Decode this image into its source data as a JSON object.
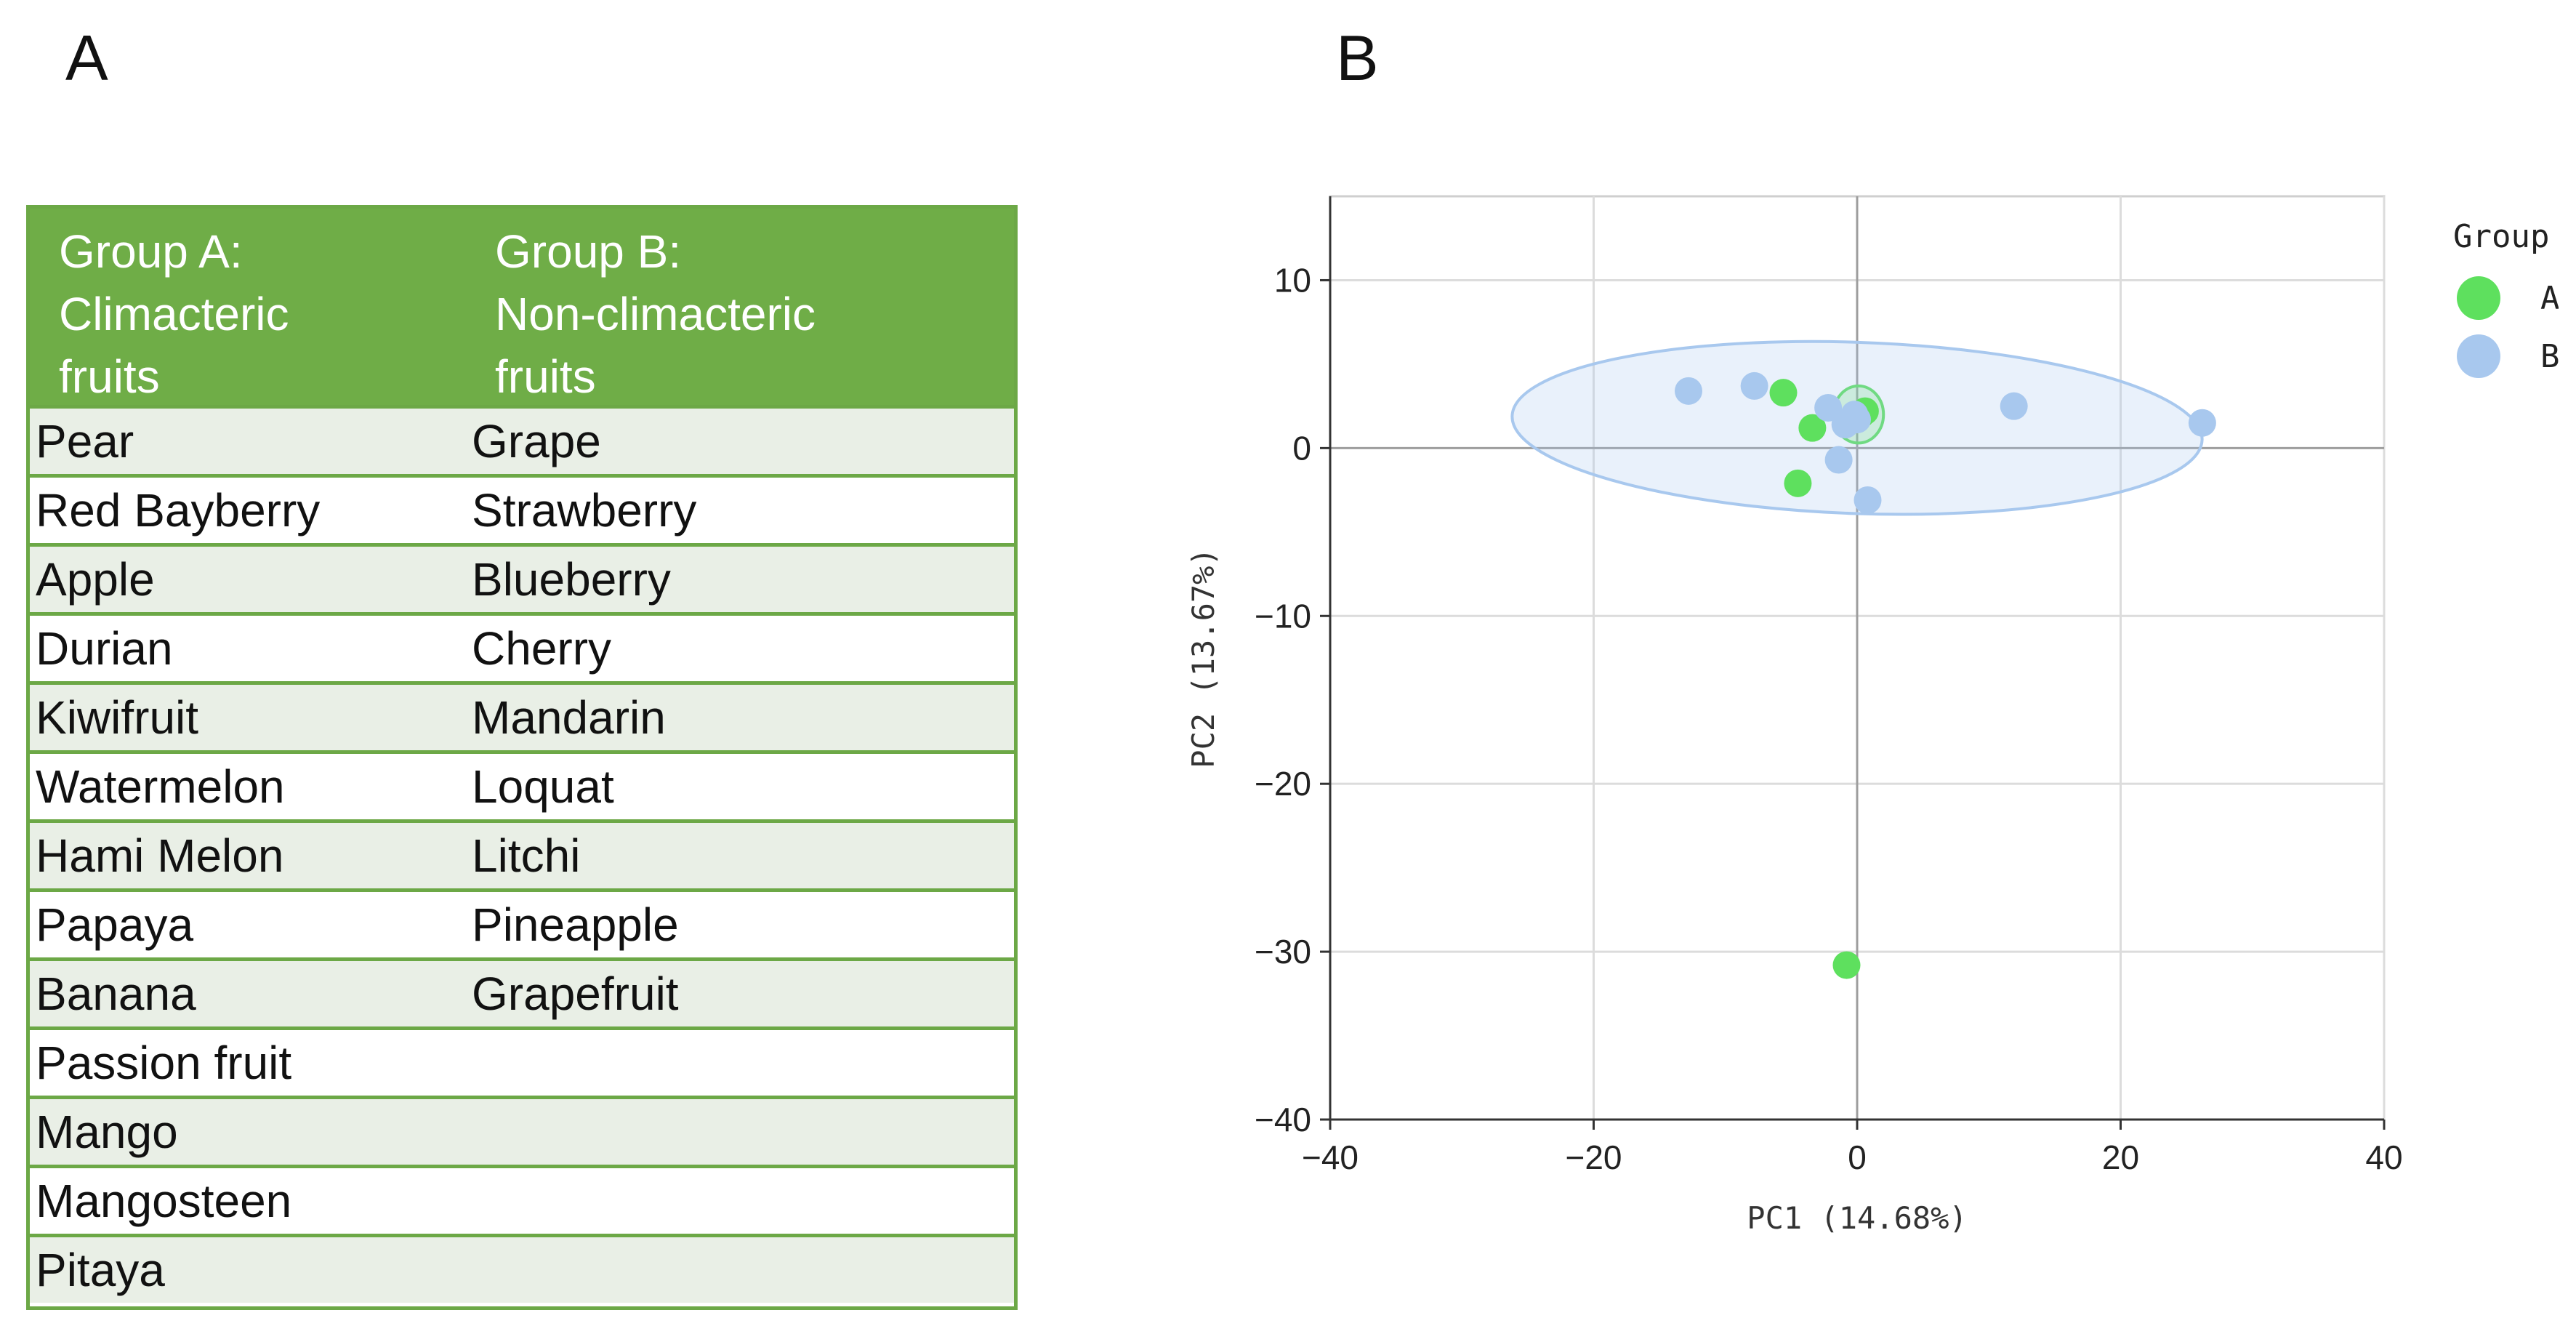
{
  "panel_a": {
    "label": "A",
    "table": {
      "headers": [
        "Group A:\nClimacteric\nfruits",
        "Group B:\nNon-climacteric\nfruits"
      ],
      "rows": [
        [
          "Pear",
          "Grape"
        ],
        [
          "Red Bayberry",
          "Strawberry"
        ],
        [
          "Apple",
          "Blueberry"
        ],
        [
          "Durian",
          "Cherry"
        ],
        [
          "Kiwifruit",
          "Mandarin"
        ],
        [
          "Watermelon",
          "Loquat"
        ],
        [
          "Hami Melon",
          "Litchi"
        ],
        [
          "Papaya",
          "Pineapple"
        ],
        [
          "Banana",
          "Grapefruit"
        ],
        [
          "Passion fruit",
          ""
        ],
        [
          "Mango",
          ""
        ],
        [
          "Mangosteen",
          ""
        ],
        [
          "Pitaya",
          ""
        ]
      ]
    },
    "colors": {
      "header": "#6fad47",
      "border": "#6ca846",
      "stripe": "#e9efe6"
    }
  },
  "panel_b": {
    "label": "B"
  },
  "chart_data": {
    "type": "scatter",
    "title": "",
    "xlabel": "PC1 (14.68%)",
    "ylabel": "PC2 (13.67%)",
    "xlim": [
      -40,
      40
    ],
    "ylim": [
      -40,
      15
    ],
    "xticks": [
      -40,
      -20,
      0,
      20,
      40
    ],
    "yticks": [
      -40,
      -30,
      -20,
      -10,
      0,
      10
    ],
    "grid": true,
    "legend": {
      "title": "Group",
      "placement": "right"
    },
    "series": [
      {
        "name": "A",
        "color": "#5ee05e",
        "points": [
          [
            -5.6,
            3.3
          ],
          [
            -3.4,
            1.2
          ],
          [
            -4.5,
            -2.1
          ],
          [
            0.3,
            2.0
          ],
          [
            0.6,
            2.2
          ],
          [
            -0.8,
            -30.8
          ]
        ],
        "ellipse": {
          "center": [
            0.1,
            2.0
          ],
          "rx": 1.9,
          "ry": 1.7,
          "angle_deg": 0
        }
      },
      {
        "name": "B",
        "color": "#a8c8ee",
        "points": [
          [
            -12.8,
            3.4
          ],
          [
            -7.8,
            3.7
          ],
          [
            -2.2,
            2.4
          ],
          [
            -1.4,
            -0.7
          ],
          [
            -0.6,
            1.6
          ],
          [
            -0.2,
            2.0
          ],
          [
            0.8,
            -3.1
          ],
          [
            11.9,
            2.5
          ],
          [
            26.2,
            1.5
          ],
          [
            -0.9,
            1.4
          ],
          [
            0.0,
            1.7
          ]
        ],
        "ellipse": {
          "center": [
            0.0,
            1.2
          ],
          "rx": 26.2,
          "ry": 5.1,
          "angle_deg": -2
        }
      }
    ]
  }
}
